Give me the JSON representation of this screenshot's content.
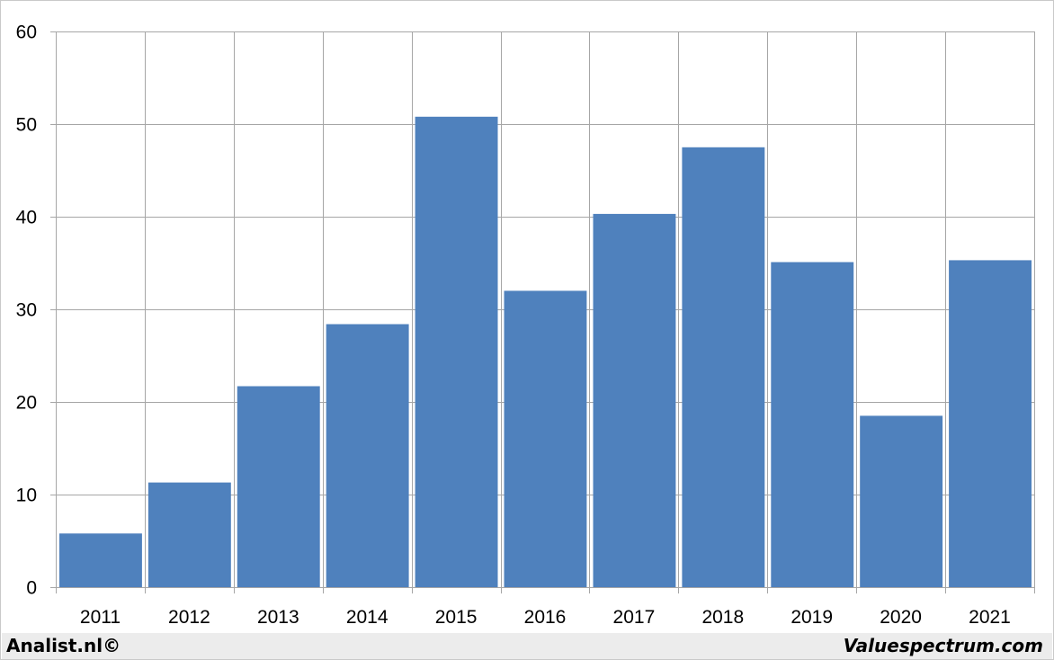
{
  "chart_data": {
    "type": "bar",
    "categories": [
      "2011",
      "2012",
      "2013",
      "2014",
      "2015",
      "2016",
      "2017",
      "2018",
      "2019",
      "2020",
      "2021"
    ],
    "values": [
      5.8,
      11.3,
      21.7,
      28.4,
      50.8,
      32.0,
      40.3,
      47.5,
      35.1,
      18.5,
      35.3
    ],
    "ylim": [
      0,
      60
    ],
    "yticks": [
      0,
      10,
      20,
      30,
      40,
      50,
      60
    ],
    "grid": true,
    "bar_color": "#4f81bd",
    "grid_color": "#a6a6a6",
    "title": "",
    "xlabel": "",
    "ylabel": ""
  },
  "footer": {
    "left_text": "Analist.nl©",
    "right_text": "Valuespectrum.com",
    "background": "#ececec"
  }
}
